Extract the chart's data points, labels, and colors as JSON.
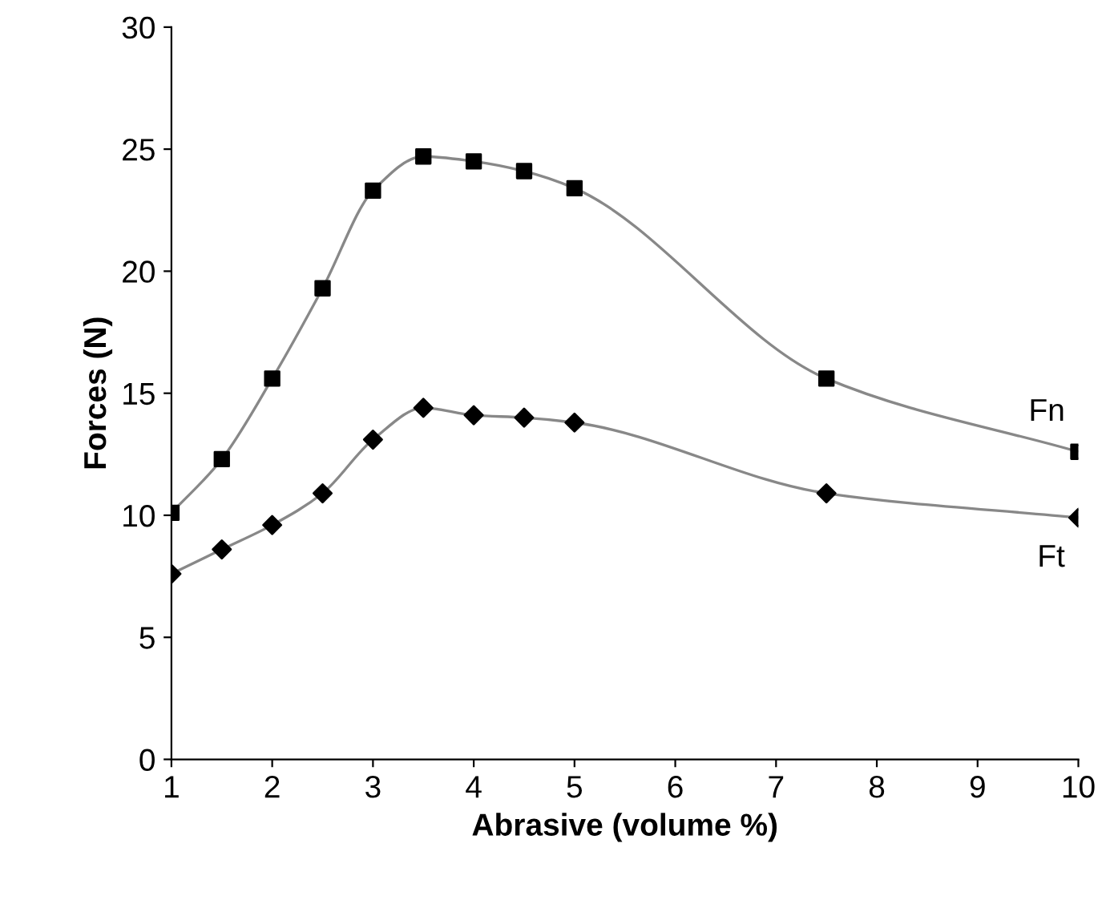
{
  "chart_data": {
    "type": "line",
    "xlabel": "Abrasive (volume %)",
    "ylabel": "Forces (N)",
    "x": [
      1,
      1.5,
      2,
      2.5,
      3,
      3.5,
      4,
      4.5,
      5,
      7.5,
      10
    ],
    "series": [
      {
        "name": "Fn",
        "color": "#000000",
        "marker": "square",
        "values": [
          10.1,
          12.3,
          15.6,
          19.3,
          23.3,
          24.7,
          24.5,
          24.1,
          23.4,
          15.6,
          12.6
        ]
      },
      {
        "name": "Ft",
        "color": "#000000",
        "marker": "diamond",
        "values": [
          7.6,
          8.6,
          9.6,
          10.9,
          13.1,
          14.4,
          14.1,
          14.0,
          13.8,
          10.9,
          9.9
        ]
      }
    ],
    "xlim": [
      1,
      10
    ],
    "xticks": [
      1,
      2,
      3,
      4,
      5,
      6,
      7,
      8,
      9,
      10
    ],
    "ylim": [
      0,
      30
    ],
    "yticks": [
      0,
      5,
      10,
      15,
      20,
      25,
      30
    ],
    "grid": false,
    "legend": false,
    "line_style": "solid"
  }
}
